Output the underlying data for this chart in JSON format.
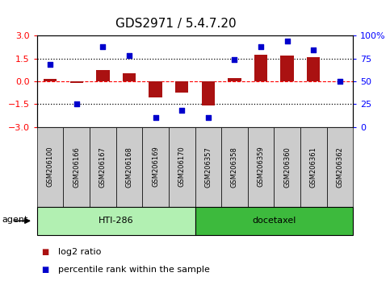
{
  "title": "GDS2971 / 5.4.7.20",
  "samples": [
    "GSM206100",
    "GSM206166",
    "GSM206167",
    "GSM206168",
    "GSM206169",
    "GSM206170",
    "GSM206357",
    "GSM206358",
    "GSM206359",
    "GSM206360",
    "GSM206361",
    "GSM206362"
  ],
  "log2_ratio": [
    0.15,
    -0.12,
    0.72,
    0.55,
    -1.05,
    -0.75,
    -1.6,
    0.18,
    1.75,
    1.68,
    1.6,
    -0.03
  ],
  "percentile": [
    68,
    25,
    88,
    78,
    10,
    18,
    10,
    74,
    88,
    94,
    84,
    50
  ],
  "groups": [
    {
      "label": "HTI-286",
      "color": "#b2f0b2",
      "start": 0,
      "end": 5
    },
    {
      "label": "docetaxel",
      "color": "#3dba3d",
      "start": 6,
      "end": 11
    }
  ],
  "agent_label": "agent",
  "ylim_left": [
    -3,
    3
  ],
  "ylim_right": [
    0,
    100
  ],
  "yticks_left": [
    -3,
    -1.5,
    0,
    1.5,
    3
  ],
  "yticks_right": [
    0,
    25,
    50,
    75,
    100
  ],
  "ytick_right_labels": [
    "0",
    "25",
    "50",
    "75",
    "100%"
  ],
  "hline_dotted": [
    -1.5,
    1.5
  ],
  "hline_dashed_red": 0,
  "bar_color": "#aa1111",
  "dot_color": "#0000cc",
  "dot_size": 20,
  "legend_bar_label": "log2 ratio",
  "legend_dot_label": "percentile rank within the sample",
  "bar_width": 0.5,
  "plot_facecolor": "#ffffff",
  "sample_box_facecolor": "#cccccc",
  "title_fontsize": 11,
  "tick_fontsize": 8,
  "legend_fontsize": 8,
  "sample_fontsize": 6
}
